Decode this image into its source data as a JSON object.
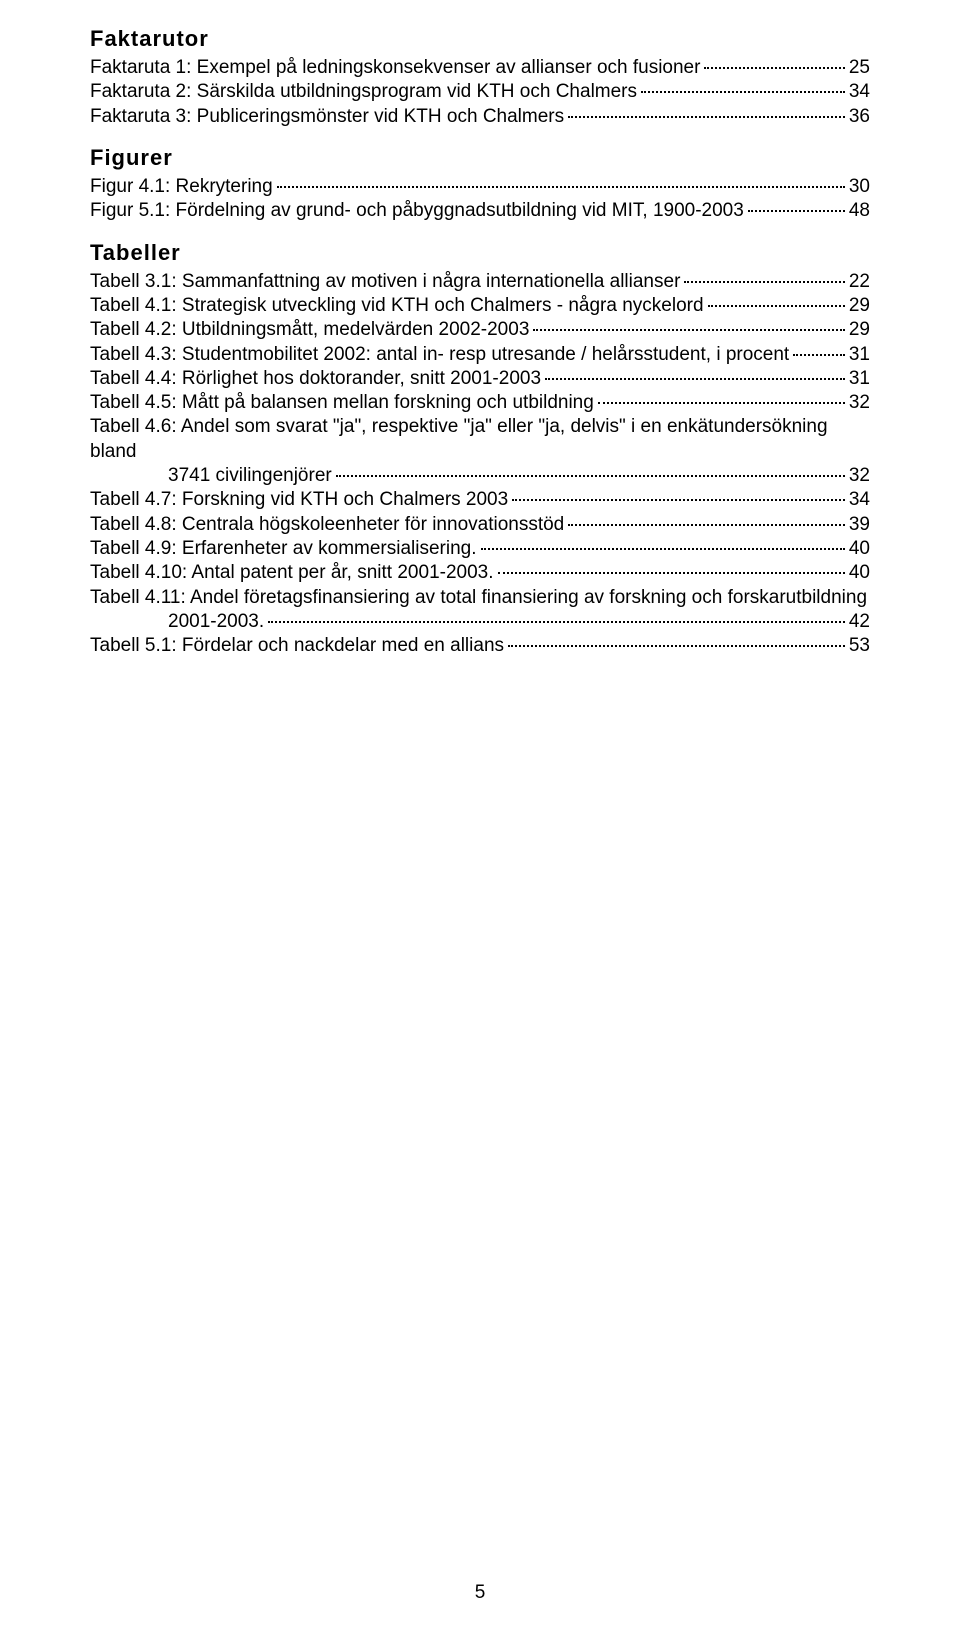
{
  "sections": {
    "faktarutor": {
      "heading": "Faktarutor",
      "items": [
        {
          "label": "Faktaruta 1: Exempel på ledningskonsekvenser av allianser och fusioner",
          "page": "25"
        },
        {
          "label": "Faktaruta 2: Särskilda utbildningsprogram vid KTH och Chalmers",
          "page": "34"
        },
        {
          "label": "Faktaruta 3: Publiceringsmönster vid KTH och Chalmers",
          "page": "36"
        }
      ]
    },
    "figurer": {
      "heading": "Figurer",
      "items": [
        {
          "label": "Figur 4.1: Rekrytering",
          "page": "30"
        },
        {
          "label": "Figur 5.1: Fördelning av grund- och påbyggnadsutbildning vid MIT, 1900-2003",
          "page": "48"
        }
      ]
    },
    "tabeller": {
      "heading": "Tabeller",
      "items": [
        {
          "label": "Tabell 3.1: Sammanfattning av motiven i några internationella allianser",
          "page": "22"
        },
        {
          "label": "Tabell 4.1: Strategisk utveckling vid KTH och Chalmers - några nyckelord",
          "page": "29"
        },
        {
          "label": "Tabell 4.2: Utbildningsmått, medelvärden 2002-2003",
          "page": "29"
        },
        {
          "label": "Tabell 4.3: Studentmobilitet 2002: antal in- resp utresande / helårsstudent, i procent",
          "page": "31"
        },
        {
          "label": "Tabell 4.4: Rörlighet hos doktorander, snitt 2001-2003",
          "page": "31"
        },
        {
          "label": "Tabell 4.5: Mått på balansen mellan forskning och utbildning",
          "page": "32"
        },
        {
          "line1": "Tabell 4.6: Andel som svarat \"ja\", respektive \"ja\" eller \"ja, delvis\" i en enkätundersökning bland",
          "line2": "3741 civilingenjörer",
          "page": "32",
          "multi": true
        },
        {
          "label": "Tabell 4.7: Forskning vid KTH och Chalmers 2003",
          "page": "34"
        },
        {
          "label": "Tabell 4.8: Centrala högskoleenheter för innovationsstöd",
          "page": "39"
        },
        {
          "label": "Tabell 4.9: Erfarenheter av kommersialisering.",
          "page": "40"
        },
        {
          "label": "Tabell 4.10: Antal patent per år, snitt 2001-2003.",
          "page": "40"
        },
        {
          "line1": "Tabell 4.11: Andel företagsfinansiering av total finansiering av forskning och forskarutbildning",
          "line2": "2001-2003.",
          "page": "42",
          "multi": true
        },
        {
          "label": "Tabell 5.1: Fördelar och nackdelar med en allians",
          "page": "53"
        }
      ]
    }
  },
  "footer_page": "5"
}
